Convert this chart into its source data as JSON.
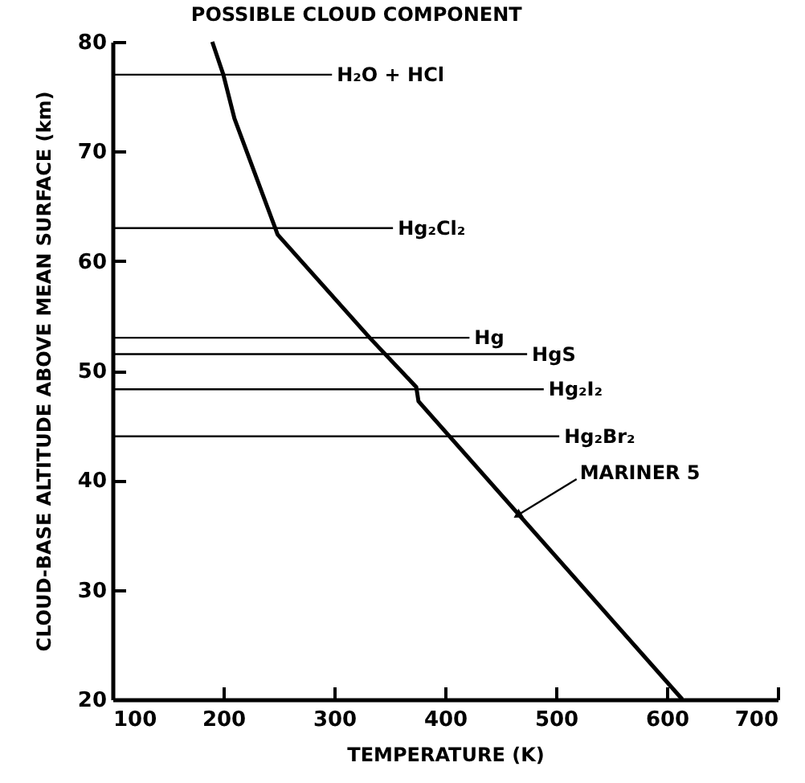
{
  "chart_data": {
    "type": "line",
    "title": "POSSIBLE CLOUD COMPONENT",
    "xlabel": "TEMPERATURE (K)",
    "ylabel": "CLOUD-BASE ALTITUDE ABOVE MEAN SURFACE (km)",
    "xlim": [
      100,
      700
    ],
    "ylim": [
      20,
      80
    ],
    "xticks": [
      100,
      200,
      300,
      400,
      500,
      600,
      700
    ],
    "yticks": [
      20,
      30,
      40,
      50,
      60,
      70,
      80
    ],
    "grid": false,
    "marker": "none",
    "line_style": "solid",
    "series": [
      {
        "name": "MARINER 5",
        "color": "#000000",
        "x": [
          190,
          200,
          210,
          249,
          332,
          374,
          376,
          614
        ],
        "values": [
          80,
          77,
          73,
          62.4,
          53,
          48.5,
          47.2,
          20
        ]
      }
    ],
    "ref_lines": [
      {
        "axis": "y",
        "value": 77,
        "color": "#000000"
      },
      {
        "axis": "y",
        "value": 63,
        "color": "#000000"
      },
      {
        "axis": "y",
        "value": 53,
        "color": "#000000"
      },
      {
        "axis": "y",
        "value": 51.5,
        "color": "#000000"
      },
      {
        "axis": "y",
        "value": 48.3,
        "color": "#000000"
      },
      {
        "axis": "y",
        "value": 44,
        "color": "#000000"
      }
    ],
    "annotations": [
      {
        "text": "H₂O + HCl",
        "x": 298,
        "y": 77
      },
      {
        "text": "Hg₂Cl₂",
        "x": 353,
        "y": 63
      },
      {
        "text": "Hg",
        "x": 422,
        "y": 53
      },
      {
        "text": "HgS",
        "x": 474,
        "y": 51.5
      },
      {
        "text": "Hg₂I₂",
        "x": 489,
        "y": 48.3
      },
      {
        "text": "Hg₂Br₂",
        "x": 503,
        "y": 44
      }
    ]
  }
}
